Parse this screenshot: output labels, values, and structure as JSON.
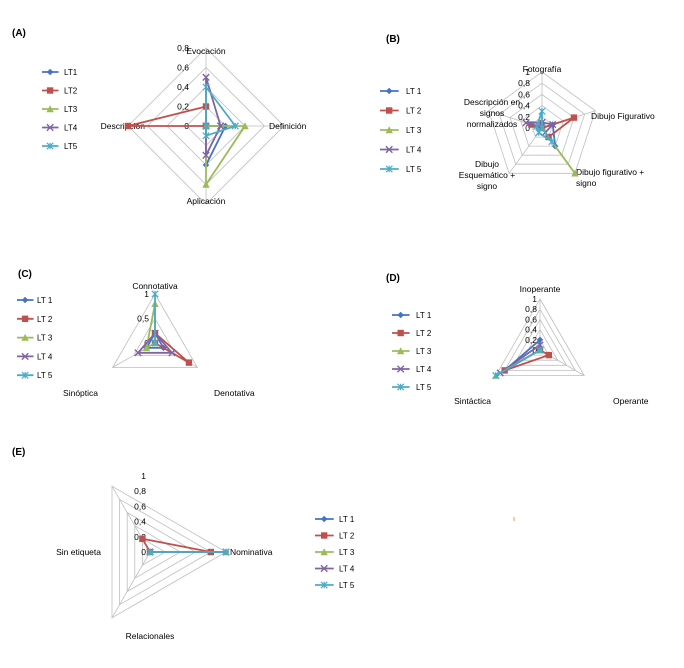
{
  "colors": {
    "LT1": "#4472C4",
    "LT2": "#C0504D",
    "LT3": "#9BBB59",
    "LT4": "#8064A2",
    "LT5": "#4BACC6",
    "grid": "#BFBFBF"
  },
  "chart_data": [
    {
      "id": "A",
      "panel_label": "(A)",
      "type": "radar",
      "axes": [
        "Evocación",
        "Definición",
        "Aplicación",
        "Descripción"
      ],
      "ticks": [
        "0",
        "0,2",
        "0,4",
        "0,6",
        "0,8"
      ],
      "rmax": 0.8,
      "series": [
        {
          "name": "LT1",
          "values": [
            0.0,
            0.2,
            0.4,
            0.0
          ]
        },
        {
          "name": "LT2",
          "values": [
            0.2,
            0.0,
            0.0,
            0.8
          ]
        },
        {
          "name": "LT3",
          "values": [
            0.0,
            0.4,
            0.6,
            0.0
          ]
        },
        {
          "name": "LT4",
          "values": [
            0.5,
            0.15,
            0.3,
            0.0
          ]
        },
        {
          "name": "LT5",
          "values": [
            0.4,
            0.3,
            0.1,
            0.0
          ]
        }
      ]
    },
    {
      "id": "B",
      "panel_label": "(B)",
      "type": "radar",
      "axes": [
        "Fotografía",
        "Dibujo Figurativo",
        "Dibujo figurativo + signo",
        "Dibujo Esquemático + signo",
        "Descripción en signos normalizados"
      ],
      "axis_lines": [
        [
          "Fotografía"
        ],
        [
          "Dibujo Figurativo"
        ],
        [
          "Dibujo figurativo +",
          "signo"
        ],
        [
          "Dibujo",
          "Esquemático +",
          "signo"
        ],
        [
          "Descripción en",
          "signos",
          "normalizados"
        ]
      ],
      "ticks": [
        "0",
        "0,2",
        "0,4",
        "0,6",
        "0,8",
        "1"
      ],
      "rmax": 1.0,
      "series": [
        {
          "name": "LT 1",
          "values": [
            0.0,
            0.2,
            0.4,
            0.0,
            0.1
          ]
        },
        {
          "name": "LT 2",
          "values": [
            0.0,
            0.6,
            0.2,
            0.0,
            0.2
          ]
        },
        {
          "name": "LT 3",
          "values": [
            0.0,
            0.0,
            1.0,
            0.0,
            0.0
          ]
        },
        {
          "name": "LT 4",
          "values": [
            0.1,
            0.2,
            0.1,
            0.0,
            0.3
          ]
        },
        {
          "name": "LT 5",
          "values": [
            0.3,
            0.0,
            0.3,
            0.1,
            0.1
          ]
        }
      ]
    },
    {
      "id": "C",
      "panel_label": "(C)",
      "type": "radar",
      "axes": [
        "Connotativa",
        "Denotativa",
        "Sinóptica"
      ],
      "ticks": [
        "0",
        "0,5",
        "1"
      ],
      "rmax": 1.0,
      "series": [
        {
          "name": "LT 1",
          "values": [
            0.2,
            0.2,
            0.2
          ]
        },
        {
          "name": "LT 2",
          "values": [
            0.2,
            0.8,
            0.0
          ]
        },
        {
          "name": "LT 3",
          "values": [
            0.8,
            0.0,
            0.2
          ]
        },
        {
          "name": "LT 4",
          "values": [
            0.2,
            0.4,
            0.4
          ]
        },
        {
          "name": "LT 5",
          "values": [
            1.0,
            0.0,
            0.0
          ]
        }
      ]
    },
    {
      "id": "D",
      "panel_label": "(D)",
      "type": "radar",
      "axes": [
        "Inoperante",
        "Operante",
        "Sintáctica"
      ],
      "ticks": [
        "0",
        "0,2",
        "0,4",
        "0,6",
        "0,8",
        "1"
      ],
      "rmax": 1.0,
      "series": [
        {
          "name": "LT 1",
          "values": [
            0.2,
            0.0,
            0.8
          ]
        },
        {
          "name": "LT 2",
          "values": [
            0.0,
            0.2,
            0.8
          ]
        },
        {
          "name": "LT 3",
          "values": [
            0.0,
            0.0,
            1.0
          ]
        },
        {
          "name": "LT 4",
          "values": [
            0.1,
            0.0,
            0.9
          ]
        },
        {
          "name": "LT 5",
          "values": [
            0.0,
            0.0,
            1.0
          ]
        }
      ]
    },
    {
      "id": "E",
      "panel_label": "(E)",
      "type": "radar",
      "axes": [
        "Nominativa",
        "Relacionales",
        "Sin etiqueta"
      ],
      "ticks": [
        "0",
        "0,2",
        "0,4",
        "0,6",
        "0,8",
        "1"
      ],
      "rmax": 1.0,
      "series": [
        {
          "name": "LT 1",
          "values": [
            1.0,
            0.0,
            0.0
          ]
        },
        {
          "name": "LT 2",
          "values": [
            0.8,
            0.0,
            0.2
          ]
        },
        {
          "name": "LT 3",
          "values": [
            1.0,
            0.0,
            0.0
          ]
        },
        {
          "name": "LT 4",
          "values": [
            1.0,
            0.0,
            0.0
          ]
        },
        {
          "name": "LT 5",
          "values": [
            1.0,
            0.0,
            0.0
          ]
        }
      ]
    }
  ]
}
